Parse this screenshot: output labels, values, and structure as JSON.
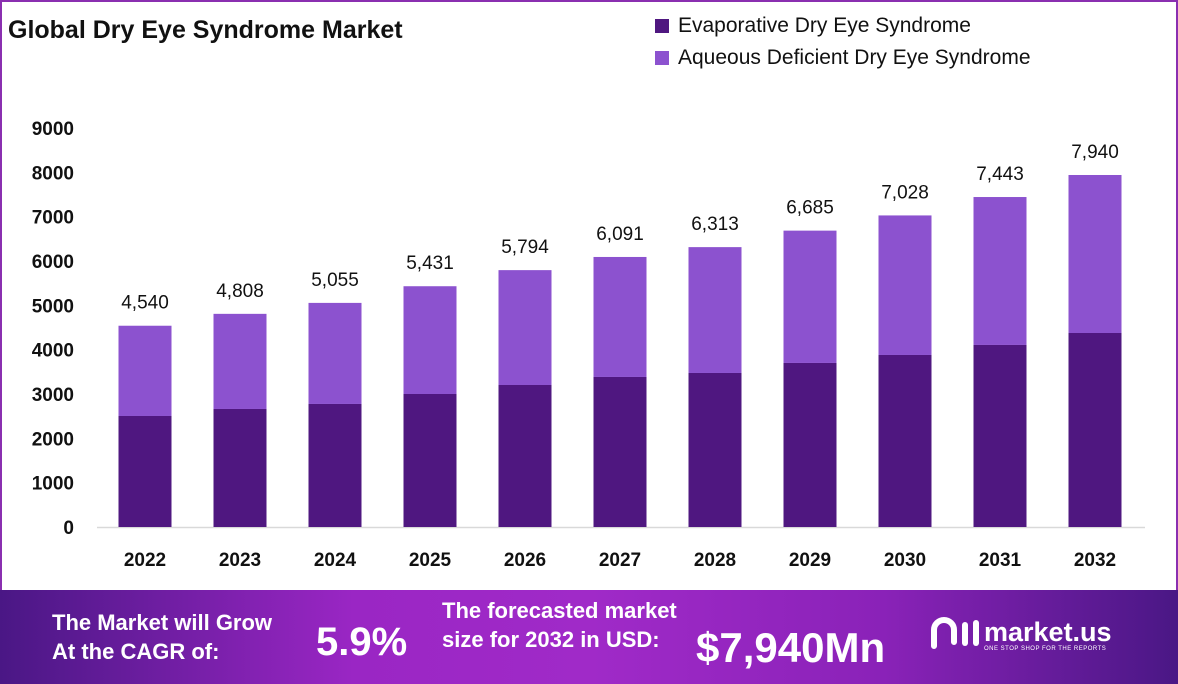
{
  "chart_data": {
    "type": "bar",
    "stacked": true,
    "title": "Global Dry Eye Syndrome Market",
    "categories": [
      "2022",
      "2023",
      "2024",
      "2025",
      "2026",
      "2027",
      "2028",
      "2029",
      "2030",
      "2031",
      "2032"
    ],
    "series": [
      {
        "name": "Evaporative Dry Eye Syndrome",
        "color": "#4f1780",
        "values": [
          2504,
          2662,
          2775,
          3000,
          3203,
          3384,
          3474,
          3700,
          3880,
          4106,
          4376
        ]
      },
      {
        "name": "Aqueous Deficient Dry Eye Syndrome",
        "color": "#8c52cf",
        "values": [
          2036,
          2146,
          2280,
          2431,
          2591,
          2707,
          2839,
          2985,
          3148,
          3337,
          3564
        ]
      }
    ],
    "totals": [
      4540,
      4808,
      5055,
      5431,
      5794,
      6091,
      6313,
      6685,
      7028,
      7443,
      7940
    ],
    "total_labels": [
      "4,540",
      "4,808",
      "5,055",
      "5,431",
      "5,794",
      "6,091",
      "6,313",
      "6,685",
      "7,028",
      "7,443",
      "7,940"
    ],
    "yticks": [
      "0",
      "1000",
      "2000",
      "3000",
      "4000",
      "5000",
      "6000",
      "7000",
      "8000",
      "9000"
    ],
    "ylim": [
      0,
      9000
    ],
    "xlabel": "",
    "ylabel": "",
    "legend": "top-right",
    "grid": false
  },
  "footer": {
    "cagr_text_1": "The Market will Grow",
    "cagr_text_2": "At the CAGR of:",
    "cagr_value": "5.9%",
    "forecast_text_1": "The forecasted market",
    "forecast_text_2": "size for 2032 in USD:",
    "forecast_value": "$7,940Mn",
    "logo_name": "market.us",
    "logo_tagline": "ONE STOP SHOP FOR THE REPORTS"
  }
}
